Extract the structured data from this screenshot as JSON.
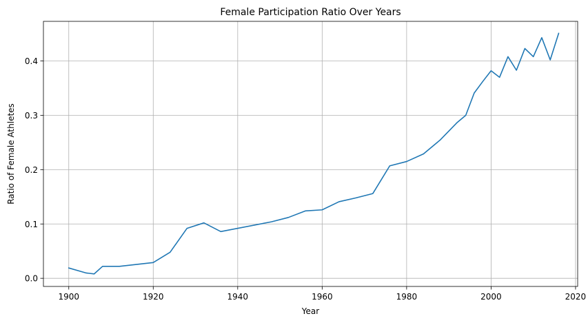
{
  "chart_data": {
    "type": "line",
    "title": "Female Participation Ratio Over Years",
    "xlabel": "Year",
    "ylabel": "Ratio of Female Athletes",
    "xlim": [
      1894,
      2020.5
    ],
    "ylim": [
      -0.015,
      0.473
    ],
    "x_ticks": [
      1900,
      1920,
      1940,
      1960,
      1980,
      2000,
      2020
    ],
    "y_ticks": [
      0.0,
      0.1,
      0.2,
      0.3,
      0.4
    ],
    "x_tick_labels": [
      "1900",
      "1920",
      "1940",
      "1960",
      "1980",
      "2000",
      "2020"
    ],
    "y_tick_labels": [
      "0.0",
      "0.1",
      "0.2",
      "0.3",
      "0.4"
    ],
    "grid": true,
    "series": [
      {
        "color": "#1f77b4",
        "x": [
          1900,
          1904,
          1906,
          1908,
          1912,
          1920,
          1924,
          1928,
          1932,
          1936,
          1948,
          1952,
          1956,
          1960,
          1964,
          1968,
          1972,
          1976,
          1980,
          1984,
          1988,
          1992,
          1994,
          1996,
          1998,
          2000,
          2002,
          2004,
          2006,
          2008,
          2010,
          2012,
          2014,
          2016
        ],
        "y": [
          0.019,
          0.01,
          0.008,
          0.022,
          0.022,
          0.029,
          0.048,
          0.092,
          0.102,
          0.086,
          0.104,
          0.112,
          0.124,
          0.126,
          0.141,
          0.148,
          0.156,
          0.207,
          0.215,
          0.229,
          0.255,
          0.287,
          0.3,
          0.341,
          0.362,
          0.382,
          0.37,
          0.408,
          0.383,
          0.423,
          0.408,
          0.443,
          0.402,
          0.451
        ]
      }
    ]
  }
}
